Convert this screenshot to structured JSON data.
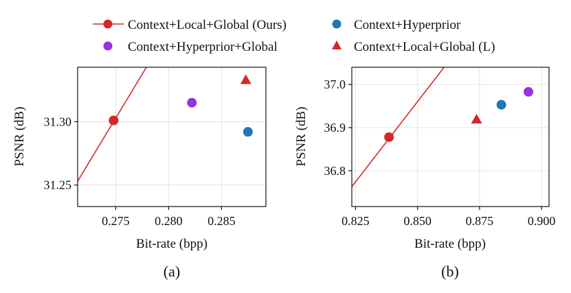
{
  "legend": {
    "entries": [
      {
        "label": "Context+Local+Global (Ours)",
        "color": "#d62728",
        "marker": "circle-line"
      },
      {
        "label": "Context+Hyperprior",
        "color": "#1f77b4",
        "marker": "circle"
      },
      {
        "label": "Context+Hyperprior+Global",
        "color": "#9b30e0",
        "marker": "circle"
      },
      {
        "label": "Context+Local+Global (L)",
        "color": "#d62728",
        "marker": "triangle"
      }
    ]
  },
  "chart_data": [
    {
      "type": "scatter",
      "caption": "(a)",
      "xlabel": "Bit-rate (bpp)",
      "ylabel": "PSNR (dB)",
      "xlim": [
        0.2714,
        0.2892
      ],
      "ylim": [
        31.233,
        31.343
      ],
      "xticks": [
        0.275,
        0.28,
        0.285
      ],
      "xtick_labels": [
        "0.275",
        "0.280",
        "0.285"
      ],
      "yticks": [
        31.25,
        31.3
      ],
      "ytick_labels": [
        "31.25",
        "31.30"
      ],
      "grid": true,
      "series": [
        {
          "name": "Context+Local+Global (Ours)",
          "color": "#d62728",
          "marker": "circle",
          "line": true,
          "line_points": [
            [
              0.2714,
              31.253
            ],
            [
              0.2779,
              31.343
            ]
          ],
          "points": [
            [
              0.2748,
              31.301
            ]
          ]
        },
        {
          "name": "Context+Hyperprior",
          "color": "#1f77b4",
          "marker": "circle",
          "points": [
            [
              0.2875,
              31.292
            ]
          ]
        },
        {
          "name": "Context+Hyperprior+Global",
          "color": "#9b30e0",
          "marker": "circle",
          "points": [
            [
              0.2822,
              31.315
            ]
          ]
        },
        {
          "name": "Context+Local+Global (L)",
          "color": "#d62728",
          "marker": "triangle",
          "points": [
            [
              0.2873,
              31.333
            ]
          ]
        }
      ]
    },
    {
      "type": "scatter",
      "caption": "(b)",
      "xlabel": "Bit-rate (bpp)",
      "ylabel": "PSNR (dB)",
      "xlim": [
        0.8235,
        0.903
      ],
      "ylim": [
        36.717,
        37.04
      ],
      "xticks": [
        0.825,
        0.85,
        0.875,
        0.9
      ],
      "xtick_labels": [
        "0.825",
        "0.850",
        "0.875",
        "0.900"
      ],
      "yticks": [
        36.8,
        36.9,
        37.0
      ],
      "ytick_labels": [
        "36.8",
        "36.9",
        "37.0"
      ],
      "grid": true,
      "series": [
        {
          "name": "Context+Local+Global (Ours)",
          "color": "#d62728",
          "marker": "circle",
          "line": true,
          "line_points": [
            [
              0.8235,
              36.763
            ],
            [
              0.8607,
              37.04
            ]
          ],
          "points": [
            [
              0.8385,
              36.878
            ]
          ]
        },
        {
          "name": "Context+Hyperprior",
          "color": "#1f77b4",
          "marker": "circle",
          "points": [
            [
              0.8838,
              36.953
            ]
          ]
        },
        {
          "name": "Context+Hyperprior+Global",
          "color": "#9b30e0",
          "marker": "circle",
          "points": [
            [
              0.8947,
              36.983
            ]
          ]
        },
        {
          "name": "Context+Local+Global (L)",
          "color": "#d62728",
          "marker": "triangle",
          "points": [
            [
              0.8738,
              36.919
            ]
          ]
        }
      ]
    }
  ]
}
